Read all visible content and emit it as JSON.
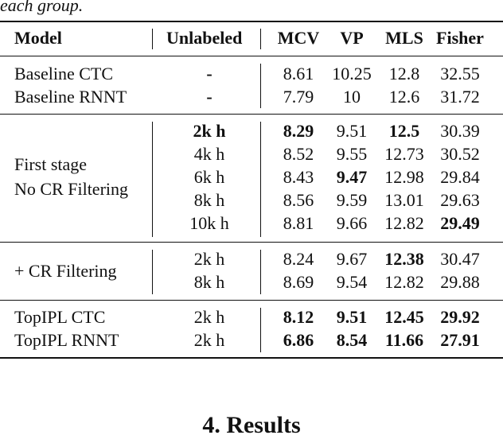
{
  "caption_tail": "each group.",
  "headers": {
    "model": "Model",
    "unlabeled": "Unlabeled",
    "mcv": "MCV",
    "vp": "VP",
    "mls": "MLS",
    "fisher": "Fisher"
  },
  "groups": [
    {
      "label_lines": [],
      "rows": [
        {
          "model": "Baseline CTC",
          "unlabeled": "-",
          "mcv": "8.61",
          "vp": "10.25",
          "mls": "12.8",
          "fisher": "32.55"
        },
        {
          "model": "Baseline RNNT",
          "unlabeled": "-",
          "mcv": "7.79",
          "vp": "10",
          "mls": "12.6",
          "fisher": "31.72"
        }
      ]
    },
    {
      "label_lines": [
        "First stage",
        "No CR Filtering"
      ],
      "rows": [
        {
          "unlabeled": "2k h",
          "mcv": "8.29",
          "vp": "9.51",
          "mls": "12.5",
          "fisher": "30.39"
        },
        {
          "unlabeled": "4k h",
          "mcv": "8.52",
          "vp": "9.55",
          "mls": "12.73",
          "fisher": "30.52"
        },
        {
          "unlabeled": "6k h",
          "mcv": "8.43",
          "vp": "9.47",
          "mls": "12.98",
          "fisher": "29.84"
        },
        {
          "unlabeled": "8k h",
          "mcv": "8.56",
          "vp": "9.59",
          "mls": "13.01",
          "fisher": "29.63"
        },
        {
          "unlabeled": "10k h",
          "mcv": "8.81",
          "vp": "9.66",
          "mls": "12.82",
          "fisher": "29.49"
        }
      ]
    },
    {
      "label_lines": [
        "+ CR Filtering"
      ],
      "rows": [
        {
          "unlabeled": "2k h",
          "mcv": "8.24",
          "vp": "9.67",
          "mls": "12.38",
          "fisher": "30.47"
        },
        {
          "unlabeled": "8k h",
          "mcv": "8.69",
          "vp": "9.54",
          "mls": "12.82",
          "fisher": "29.88"
        }
      ]
    },
    {
      "label_lines": [],
      "rows": [
        {
          "model": "TopIPL CTC",
          "unlabeled": "2k h",
          "mcv": "8.12",
          "vp": "9.51",
          "mls": "12.45",
          "fisher": "29.92"
        },
        {
          "model": "TopIPL RNNT",
          "unlabeled": "2k h",
          "mcv": "6.86",
          "vp": "8.54",
          "mls": "11.66",
          "fisher": "27.91"
        }
      ]
    }
  ],
  "section_heading": "4.  Results"
}
